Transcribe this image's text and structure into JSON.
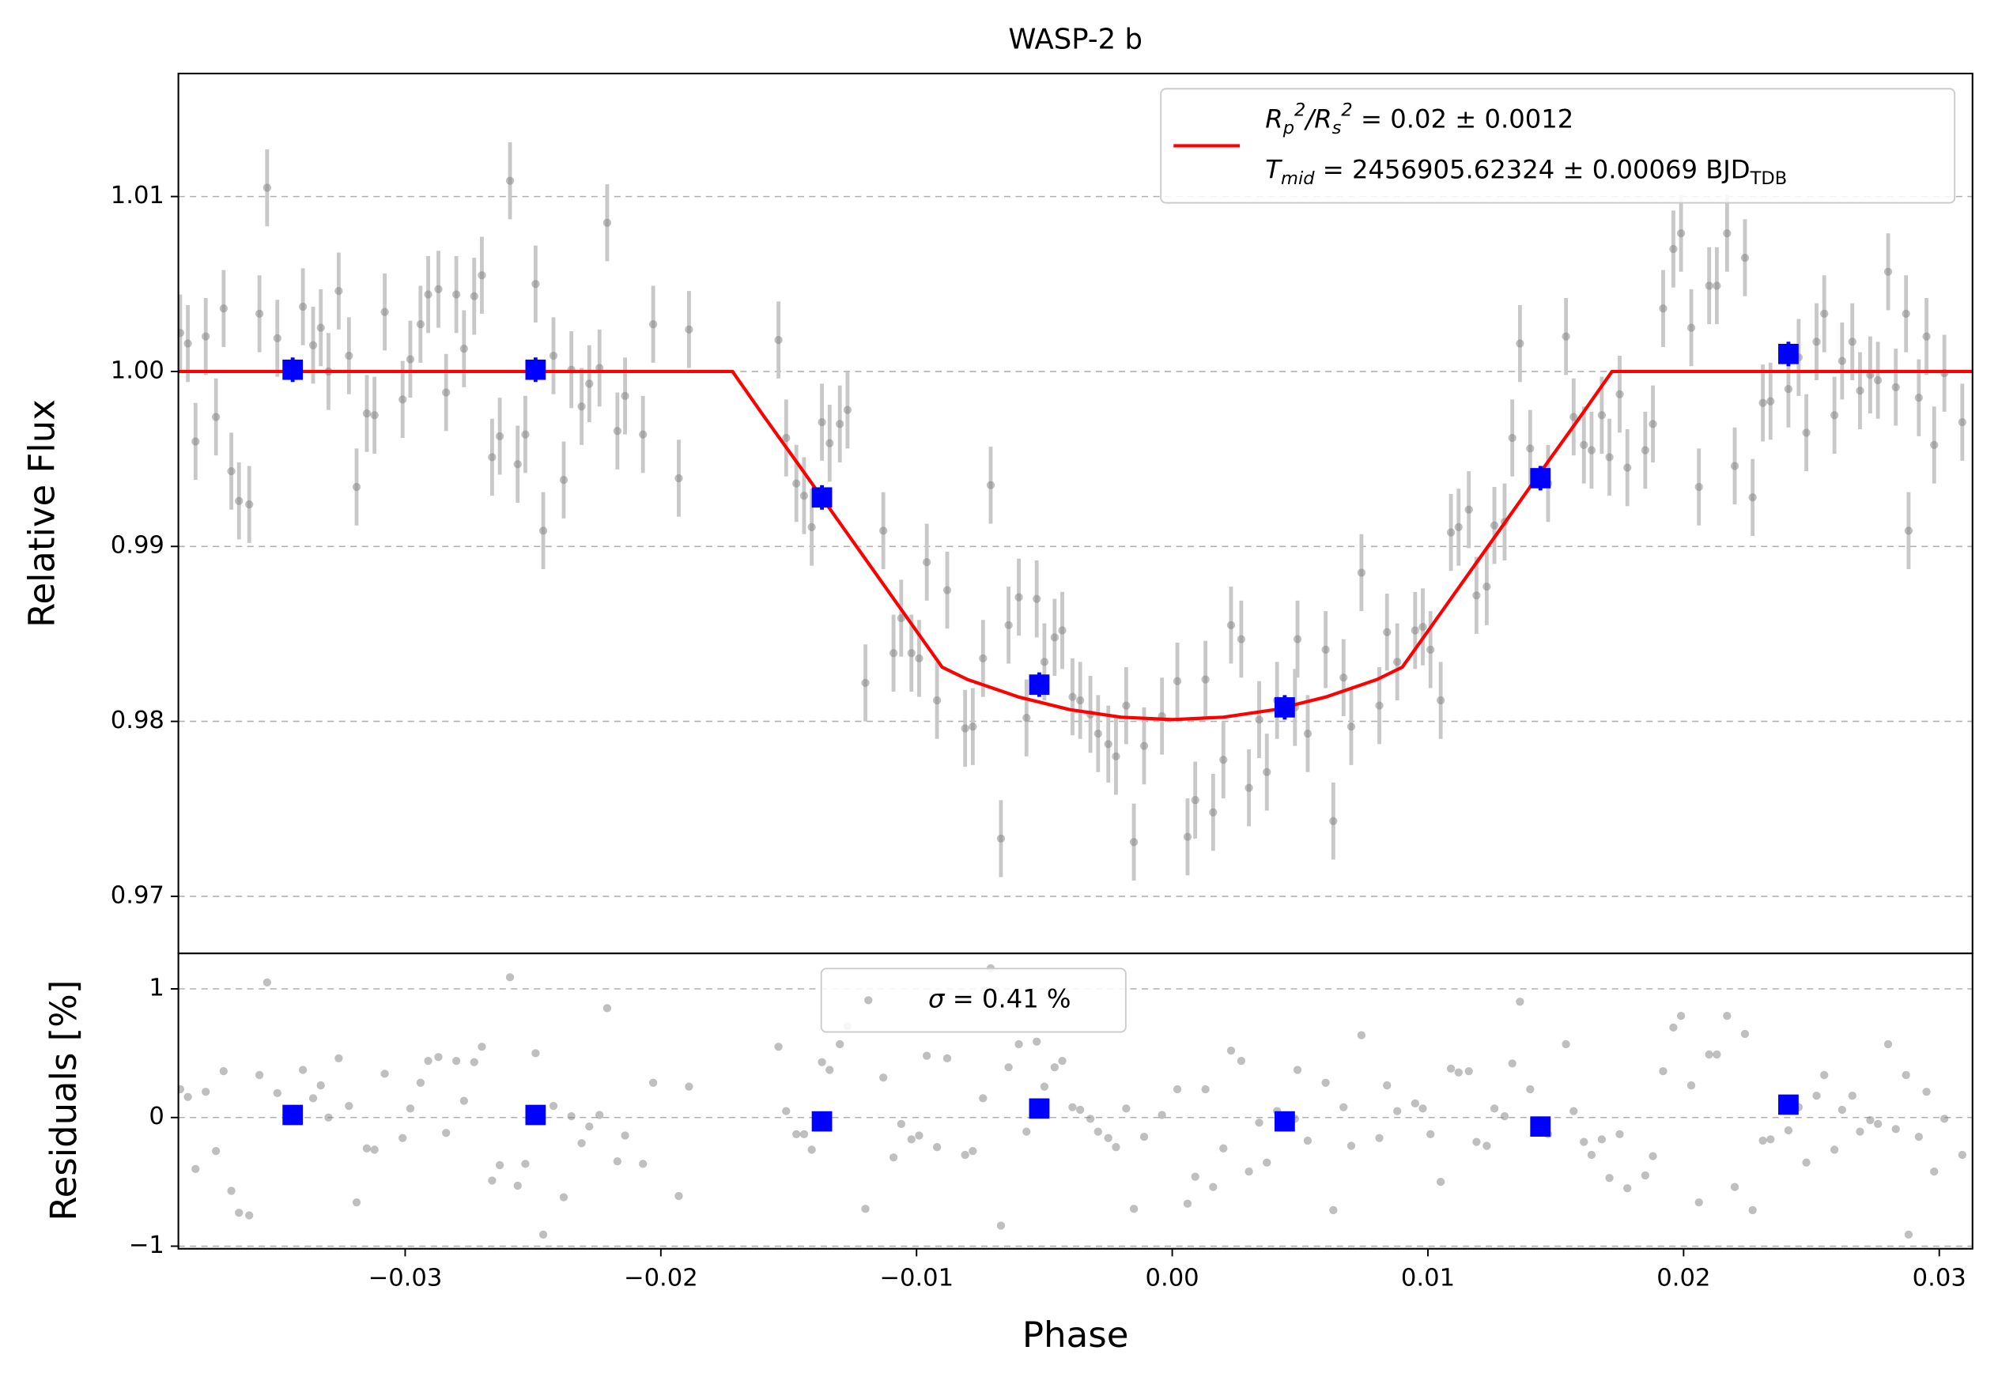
{
  "chart_data": [
    {
      "type": "scatter",
      "title": "WASP-2 b",
      "ylabel": "Relative Flux",
      "xlim": [
        -0.03887,
        0.0313
      ],
      "ylim": [
        0.96674,
        1.01703
      ],
      "yticks": [
        0.97,
        0.98,
        0.99,
        {
          "value": 1,
          "label": "1.00"
        },
        1.01
      ],
      "grid": true,
      "legend": "upper right",
      "series": [
        {
          "color": "#808080",
          "alpha": 0.5,
          "marker": "circle",
          "error": 0.0022,
          "error_color": "#c8c8c8",
          "x": [
            -0.0388,
            -0.0385,
            -0.0382,
            -0.0378,
            -0.0374,
            -0.0371,
            -0.0368,
            -0.0365,
            -0.0361,
            -0.0357,
            -0.0354,
            -0.035,
            -0.034,
            -0.0336,
            -0.0333,
            -0.033,
            -0.0326,
            -0.0322,
            -0.0319,
            -0.0315,
            -0.0312,
            -0.0308,
            -0.0301,
            -0.0298,
            -0.0294,
            -0.0291,
            -0.0287,
            -0.0284,
            -0.028,
            -0.0277,
            -0.0273,
            -0.027,
            -0.0266,
            -0.0263,
            -0.0259,
            -0.0256,
            -0.0253,
            -0.0249,
            -0.0246,
            -0.0242,
            -0.0238,
            -0.0235,
            -0.0231,
            -0.0228,
            -0.0224,
            -0.0221,
            -0.0217,
            -0.0214,
            -0.0207,
            -0.0203,
            -0.0193,
            -0.0189,
            -0.0154,
            -0.0151,
            -0.0147,
            -0.0144,
            -0.0141,
            -0.0137,
            -0.0134,
            -0.013,
            -0.0127,
            -0.012,
            -0.0113,
            -0.0109,
            -0.0106,
            -0.0102,
            -0.0099,
            -0.0096,
            -0.0092,
            -0.0088,
            -0.0081,
            -0.0078,
            -0.0074,
            -0.0071,
            -0.0067,
            -0.0064,
            -0.006,
            -0.0057,
            -0.0053,
            -0.005,
            -0.0046,
            -0.0043,
            -0.0039,
            -0.0036,
            -0.0032,
            -0.0029,
            -0.0025,
            -0.0022,
            -0.0018,
            -0.0015,
            -0.0011,
            -0.0004,
            0.0002,
            0.0006,
            0.0009,
            0.0013,
            0.0016,
            0.002,
            0.0023,
            0.0027,
            0.003,
            0.0034,
            0.0037,
            0.0041,
            0.0048,
            0.0049,
            0.0053,
            0.006,
            0.0063,
            0.0067,
            0.007,
            0.0074,
            0.0081,
            0.0084,
            0.0088,
            0.0095,
            0.0098,
            0.0101,
            0.0105,
            0.0109,
            0.0112,
            0.0116,
            0.0119,
            0.0123,
            0.0126,
            0.013,
            0.0133,
            0.0136,
            0.014,
            0.0147,
            0.0154,
            0.0157,
            0.0161,
            0.0164,
            0.0168,
            0.0171,
            0.0175,
            0.0178,
            0.0185,
            0.0188,
            0.0192,
            0.0196,
            0.0199,
            0.0203,
            0.0206,
            0.021,
            0.0213,
            0.0217,
            0.022,
            0.0224,
            0.0227,
            0.0231,
            0.0234,
            0.0241,
            0.0245,
            0.0248,
            0.0252,
            0.0255,
            0.0259,
            0.0262,
            0.0266,
            0.0269,
            0.0273,
            0.0276,
            0.028,
            0.0283,
            0.0287,
            0.0288,
            0.0292,
            0.0295,
            0.0298,
            0.0302,
            0.0309
          ],
          "values": [
            1.0022,
            1.0016,
            0.996,
            1.002,
            0.9974,
            1.0036,
            0.9943,
            0.9926,
            0.9924,
            1.0033,
            1.0105,
            1.0019,
            1.0037,
            1.0015,
            1.0025,
            1,
            1.0046,
            1.0009,
            0.9934,
            0.9976,
            0.9975,
            1.0034,
            0.9984,
            1.0007,
            1.0027,
            1.0044,
            1.0047,
            0.9988,
            1.0044,
            1.0013,
            1.0043,
            1.0055,
            0.9951,
            0.9963,
            1.0109,
            0.9947,
            0.9964,
            1.005,
            0.9909,
            1.0009,
            0.9938,
            1.0001,
            0.998,
            0.9993,
            1.0002,
            1.0085,
            0.9966,
            0.9986,
            0.9964,
            1.0027,
            0.9939,
            1.0024,
            1.0018,
            0.9962,
            0.9936,
            0.9929,
            0.9911,
            0.9971,
            0.9959,
            0.997,
            0.9978,
            0.9822,
            0.9909,
            0.9839,
            0.9859,
            0.9839,
            0.9836,
            0.9891,
            0.9812,
            0.9875,
            0.9796,
            0.9797,
            0.9836,
            0.9935,
            0.9733,
            0.9855,
            0.9871,
            0.9802,
            0.987,
            0.9834,
            0.9848,
            0.9852,
            0.9814,
            0.9812,
            0.9804,
            0.9793,
            0.9787,
            0.978,
            0.9809,
            0.9731,
            0.9786,
            0.9803,
            0.9823,
            0.9734,
            0.9755,
            0.9824,
            0.9748,
            0.9778,
            0.9855,
            0.9847,
            0.9762,
            0.9801,
            0.9771,
            0.9812,
            0.9808,
            0.9847,
            0.9793,
            0.9841,
            0.9743,
            0.9825,
            0.9797,
            0.9885,
            0.9809,
            0.9851,
            0.9834,
            0.9852,
            0.9854,
            0.9841,
            0.9812,
            0.9908,
            0.9911,
            0.9921,
            0.9872,
            0.9877,
            0.9912,
            0.9914,
            0.9962,
            1.0016,
            0.9956,
            0.9936,
            1.002,
            0.9974,
            0.9958,
            0.9955,
            0.9975,
            0.9951,
            0.9987,
            0.9945,
            0.9955,
            0.997,
            1.0036,
            1.007,
            1.0079,
            1.0025,
            0.9934,
            1.0049,
            1.0049,
            1.0079,
            0.9946,
            1.0065,
            0.9928,
            0.9982,
            0.9983,
            0.999,
            1.0008,
            0.9965,
            1.0017,
            1.0033,
            0.9975,
            1.0006,
            1.0017,
            0.9989,
            0.9998,
            0.9995,
            1.0057,
            0.9991,
            1.0033,
            0.9909,
            0.9985,
            1.002,
            0.9958,
            0.9999,
            0.9971
          ]
        },
        {
          "name": [
            [
              {
                "text": "R",
                "style": "italic"
              },
              {
                "text": "p",
                "style": "sub"
              },
              {
                "text": "2",
                "style": "sup"
              },
              {
                "text": "/",
                "style": "italic"
              },
              {
                "text": "R",
                "style": "italic"
              },
              {
                "text": "s",
                "style": "sub"
              },
              {
                "text": "2",
                "style": "sup"
              },
              {
                "text": " = 0.02 ± 0.0012"
              }
            ],
            [
              {
                "text": "T",
                "style": "italic"
              },
              {
                "text": "mid",
                "style": "sub"
              },
              {
                "text": " = 2456905.62324 ± 0.00069 BJD"
              },
              {
                "text": "TDB",
                "style": "sub"
              }
            ]
          ],
          "color": "#ff0000",
          "marker": null,
          "line": true,
          "x": [
            -0.039,
            -0.0172,
            -0.016,
            -0.0145,
            -0.013,
            -0.0115,
            -0.01,
            -0.009,
            -0.008,
            -0.006,
            -0.004,
            -0.002,
            0,
            0.002,
            0.004,
            0.006,
            0.008,
            0.009,
            0.01,
            0.0115,
            0.013,
            0.0145,
            0.016,
            0.0172,
            0.0315
          ],
          "values": [
            1,
            1,
            0.9975,
            0.99444,
            0.99134,
            0.98825,
            0.98516,
            0.9831,
            0.98239,
            0.98139,
            0.98067,
            0.98024,
            0.9801,
            0.98024,
            0.98067,
            0.98139,
            0.98239,
            0.9831,
            0.98516,
            0.98825,
            0.99134,
            0.99444,
            0.9975,
            1,
            1
          ]
        },
        {
          "color": "#0000ff",
          "alpha": 1,
          "marker": "square",
          "error": 0.0007,
          "error_color": "#0000ff",
          "x": [
            -0.0344,
            -0.0249,
            -0.0137,
            -0.0052,
            0.0044,
            0.0144,
            0.0241
          ],
          "values": [
            1.0001,
            1.0001,
            0.9928,
            0.9821,
            0.9808,
            0.9939,
            1.001
          ]
        }
      ]
    },
    {
      "type": "scatter",
      "ylabel": "Residuals [%]",
      "xlabel": "Phase",
      "xlim": [
        -0.03887,
        0.0313
      ],
      "ylim": [
        -1.02,
        1.276
      ],
      "xticks": [
        {
          "value": -0.03,
          "label": "−0.03"
        },
        {
          "value": -0.02,
          "label": "−0.02"
        },
        {
          "value": -0.01,
          "label": "−0.01"
        },
        {
          "value": 0,
          "label": "0.00"
        },
        0.01,
        0.02,
        0.03
      ],
      "yticks": [
        {
          "value": -1,
          "label": "−1"
        },
        0,
        1
      ],
      "grid": true,
      "legend": "upper center",
      "series": [
        {
          "name": [
            [
              {
                "text": "σ",
                "style": "italic"
              },
              {
                "text": " = 0.41 %"
              }
            ]
          ],
          "color": "#808080",
          "alpha": 0.5,
          "marker": "circle",
          "x": [
            -0.0388,
            -0.0385,
            -0.0382,
            -0.0378,
            -0.0374,
            -0.0371,
            -0.0368,
            -0.0365,
            -0.0361,
            -0.0357,
            -0.0354,
            -0.035,
            -0.034,
            -0.0336,
            -0.0333,
            -0.033,
            -0.0326,
            -0.0322,
            -0.0319,
            -0.0315,
            -0.0312,
            -0.0308,
            -0.0301,
            -0.0298,
            -0.0294,
            -0.0291,
            -0.0287,
            -0.0284,
            -0.028,
            -0.0277,
            -0.0273,
            -0.027,
            -0.0266,
            -0.0263,
            -0.0259,
            -0.0256,
            -0.0253,
            -0.0249,
            -0.0246,
            -0.0242,
            -0.0238,
            -0.0235,
            -0.0231,
            -0.0228,
            -0.0224,
            -0.0221,
            -0.0217,
            -0.0214,
            -0.0207,
            -0.0203,
            -0.0193,
            -0.0189,
            -0.0154,
            -0.0151,
            -0.0147,
            -0.0144,
            -0.0141,
            -0.0137,
            -0.0134,
            -0.013,
            -0.0127,
            -0.012,
            -0.0113,
            -0.0109,
            -0.0106,
            -0.0102,
            -0.0099,
            -0.0096,
            -0.0092,
            -0.0088,
            -0.0081,
            -0.0078,
            -0.0074,
            -0.0071,
            -0.0067,
            -0.0064,
            -0.006,
            -0.0057,
            -0.0053,
            -0.005,
            -0.0046,
            -0.0043,
            -0.0039,
            -0.0036,
            -0.0032,
            -0.0029,
            -0.0025,
            -0.0022,
            -0.0018,
            -0.0015,
            -0.0011,
            -0.0004,
            0.0002,
            0.0006,
            0.0009,
            0.0013,
            0.0016,
            0.002,
            0.0023,
            0.0027,
            0.003,
            0.0034,
            0.0037,
            0.0041,
            0.0048,
            0.0049,
            0.0053,
            0.006,
            0.0063,
            0.0067,
            0.007,
            0.0074,
            0.0081,
            0.0084,
            0.0088,
            0.0095,
            0.0098,
            0.0101,
            0.0105,
            0.0109,
            0.0112,
            0.0116,
            0.0119,
            0.0123,
            0.0126,
            0.013,
            0.0133,
            0.0136,
            0.014,
            0.0147,
            0.0154,
            0.0157,
            0.0161,
            0.0164,
            0.0168,
            0.0171,
            0.0175,
            0.0178,
            0.0185,
            0.0188,
            0.0192,
            0.0196,
            0.0199,
            0.0203,
            0.0206,
            0.021,
            0.0213,
            0.0217,
            0.022,
            0.0224,
            0.0227,
            0.0231,
            0.0234,
            0.0241,
            0.0245,
            0.0248,
            0.0252,
            0.0255,
            0.0259,
            0.0262,
            0.0266,
            0.0269,
            0.0273,
            0.0276,
            0.028,
            0.0283,
            0.0287,
            0.0288,
            0.0292,
            0.0295,
            0.0298,
            0.0302,
            0.0309
          ],
          "values": [
            0.22,
            0.16,
            -0.4,
            0.2,
            -0.26,
            0.36,
            -0.57,
            -0.74,
            -0.76,
            0.33,
            1.05,
            0.19,
            0.37,
            0.15,
            0.25,
            0,
            0.46,
            0.09,
            -0.66,
            -0.24,
            -0.25,
            0.34,
            -0.16,
            0.07,
            0.27,
            0.44,
            0.47,
            -0.12,
            0.44,
            0.13,
            0.43,
            0.55,
            -0.49,
            -0.37,
            1.09,
            -0.53,
            -0.36,
            0.5,
            -0.91,
            0.09,
            -0.62,
            0.01,
            -0.2,
            -0.07,
            0.02,
            0.85,
            -0.34,
            -0.14,
            -0.36,
            0.27,
            -0.61,
            0.24,
            0.55,
            0.05,
            -0.13,
            -0.13,
            -0.25,
            0.43,
            0.37,
            0.57,
            0.71,
            -0.71,
            0.31,
            -0.31,
            -0.05,
            -0.17,
            -0.14,
            0.48,
            -0.23,
            0.46,
            -0.29,
            -0.26,
            0.15,
            1.16,
            -0.84,
            0.39,
            0.57,
            -0.11,
            0.59,
            0.24,
            0.39,
            0.44,
            0.08,
            0.06,
            -0.01,
            -0.11,
            -0.16,
            -0.23,
            0.07,
            -0.71,
            -0.15,
            0.02,
            0.22,
            -0.67,
            -0.46,
            0.22,
            -0.54,
            -0.24,
            0.52,
            0.44,
            -0.42,
            -0.04,
            -0.35,
            0.05,
            -0.01,
            0.37,
            -0.18,
            0.27,
            -0.72,
            0.08,
            -0.22,
            0.64,
            -0.16,
            0.25,
            0.05,
            0.11,
            0.07,
            -0.13,
            -0.5,
            0.38,
            0.35,
            0.36,
            -0.19,
            -0.22,
            0.07,
            0.01,
            0.42,
            0.9,
            0.22,
            -0.13,
            0.57,
            0.05,
            -0.19,
            -0.29,
            -0.17,
            -0.47,
            -0.13,
            -0.55,
            -0.45,
            -0.3,
            0.36,
            0.7,
            0.79,
            0.25,
            -0.66,
            0.49,
            0.49,
            0.79,
            -0.54,
            0.65,
            -0.72,
            -0.18,
            -0.17,
            -0.1,
            0.08,
            -0.35,
            0.17,
            0.33,
            -0.25,
            0.06,
            0.17,
            -0.11,
            -0.02,
            -0.05,
            0.57,
            -0.09,
            0.33,
            -0.91,
            -0.15,
            0.2,
            -0.42,
            -0.01,
            -0.29
          ]
        },
        {
          "color": "#0000ff",
          "alpha": 1,
          "marker": "square",
          "x": [
            -0.0344,
            -0.0249,
            -0.0137,
            -0.0052,
            0.0044,
            0.0144,
            0.0241
          ],
          "values": [
            0.02,
            0.02,
            -0.03,
            0.07,
            -0.03,
            -0.07,
            0.1
          ]
        }
      ]
    }
  ]
}
